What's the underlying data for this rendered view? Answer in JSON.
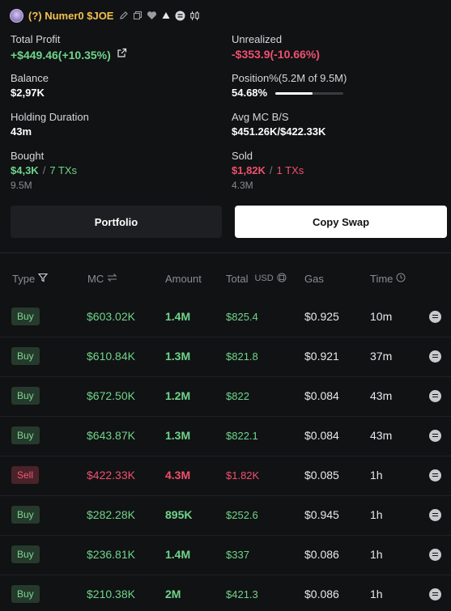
{
  "header": {
    "token_name": "(?) Numer0 $JOE",
    "icons": [
      "avatar",
      "edit-icon",
      "copy-icon",
      "heart-icon",
      "warning-triangle-icon",
      "list-circle-icon",
      "candlestick-icon"
    ]
  },
  "stats": {
    "total_profit": {
      "label": "Total Profit",
      "value": "+$449.46(+10.35%)"
    },
    "unrealized": {
      "label": "Unrealized",
      "value": "-$353.9(-10.66%)"
    },
    "balance": {
      "label": "Balance",
      "value": "$2,97K"
    },
    "position": {
      "label": "Position%(5.2M of 9.5M)",
      "value": "54.68%",
      "progress_fraction": 0.5468
    },
    "holding": {
      "label": "Holding Duration",
      "value": "43m"
    },
    "avg_mc": {
      "label": "Avg MC B/S",
      "value": "$451.26K/$422.33K"
    },
    "bought": {
      "label": "Bought",
      "amount": "$4,3K",
      "sep": "/",
      "txs": "7 TXs",
      "sub": "9.5M"
    },
    "sold": {
      "label": "Sold",
      "amount": "$1,82K",
      "sep": "/",
      "txs": "1 TXs",
      "sub": "4.3M"
    }
  },
  "buttons": {
    "portfolio": "Portfolio",
    "copy_swap": "Copy Swap"
  },
  "table": {
    "headers": {
      "type": "Type",
      "mc": "MC",
      "amount": "Amount",
      "total": "Total",
      "usd": "USD",
      "gas": "Gas",
      "time": "Time"
    },
    "rows": [
      {
        "type": "Buy",
        "mc": "$603.02K",
        "amount": "1.4M",
        "total": "$825.4",
        "gas": "$0.925",
        "time": "10m"
      },
      {
        "type": "Buy",
        "mc": "$610.84K",
        "amount": "1.3M",
        "total": "$821.8",
        "gas": "$0.921",
        "time": "37m"
      },
      {
        "type": "Buy",
        "mc": "$672.50K",
        "amount": "1.2M",
        "total": "$822",
        "gas": "$0.084",
        "time": "43m"
      },
      {
        "type": "Buy",
        "mc": "$643.87K",
        "amount": "1.3M",
        "total": "$822.1",
        "gas": "$0.084",
        "time": "43m"
      },
      {
        "type": "Sell",
        "mc": "$422.33K",
        "amount": "4.3M",
        "total": "$1.82K",
        "gas": "$0.085",
        "time": "1h"
      },
      {
        "type": "Buy",
        "mc": "$282.28K",
        "amount": "895K",
        "total": "$252.6",
        "gas": "$0.945",
        "time": "1h"
      },
      {
        "type": "Buy",
        "mc": "$236.81K",
        "amount": "1.4M",
        "total": "$337",
        "gas": "$0.086",
        "time": "1h"
      },
      {
        "type": "Buy",
        "mc": "$210.38K",
        "amount": "2M",
        "total": "$421.3",
        "gas": "$0.086",
        "time": "1h"
      }
    ]
  },
  "colors": {
    "buy": "#6fd58a",
    "sell": "#f0506e",
    "token": "#f2c14e",
    "background": "#111214"
  }
}
